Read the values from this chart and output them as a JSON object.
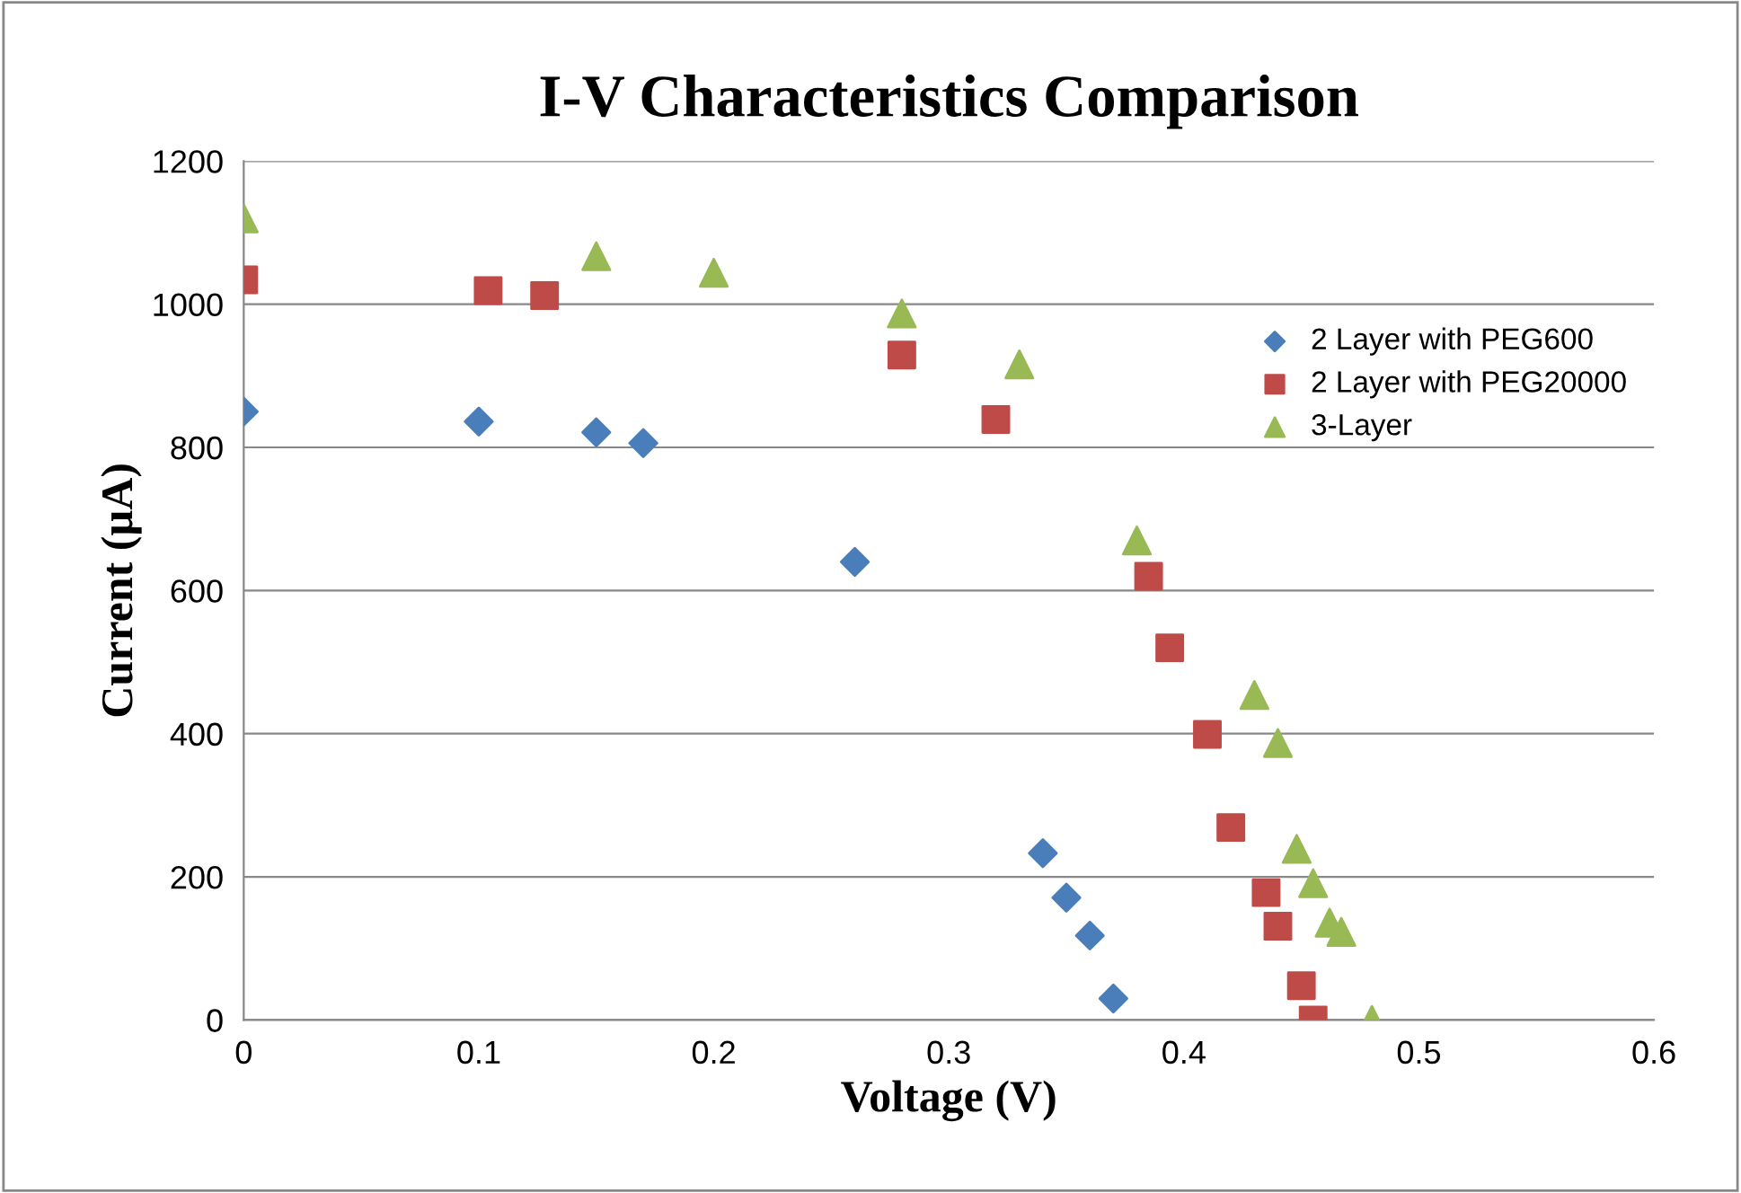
{
  "chart_data": {
    "type": "scatter",
    "title": "I-V Characteristics Comparison",
    "xlabel": "Voltage (V)",
    "ylabel": "Current (µA)",
    "xlim": [
      0,
      0.6
    ],
    "xticks": [
      {
        "value": 0,
        "label": "0"
      },
      0.1,
      0.2,
      0.3,
      0.4,
      0.5,
      0.6
    ],
    "ylim": [
      0,
      1200
    ],
    "yticks": [
      0,
      200,
      400,
      600,
      800,
      1000,
      1200
    ],
    "grid": "y",
    "legend": "right",
    "series": [
      {
        "name": "2 Layer with PEG600",
        "color": "#4a7ebb",
        "marker": "diamond",
        "x": [
          0,
          0.1,
          0.15,
          0.17,
          0.26,
          0.34,
          0.35,
          0.36,
          0.37
        ],
        "values": [
          850,
          836,
          821,
          806,
          640,
          233,
          171,
          118,
          30
        ]
      },
      {
        "name": "2 Layer with PEG20000",
        "color": "#be4b48",
        "marker": "square",
        "x": [
          0,
          0.104,
          0.128,
          0.28,
          0.32,
          0.385,
          0.394,
          0.41,
          0.42,
          0.435,
          0.44,
          0.45,
          0.455
        ],
        "values": [
          1034,
          1019,
          1012,
          929,
          839,
          620,
          520,
          399,
          269,
          178,
          131,
          48,
          0
        ]
      },
      {
        "name": "3-Layer",
        "color": "#98b954",
        "marker": "triangle",
        "x": [
          0,
          0.15,
          0.2,
          0.28,
          0.33,
          0.38,
          0.43,
          0.44,
          0.448,
          0.455,
          0.462,
          0.467,
          0.48
        ],
        "values": [
          1120,
          1067,
          1044,
          987,
          916,
          670,
          454,
          387,
          239,
          191,
          136,
          123,
          0
        ]
      }
    ]
  }
}
